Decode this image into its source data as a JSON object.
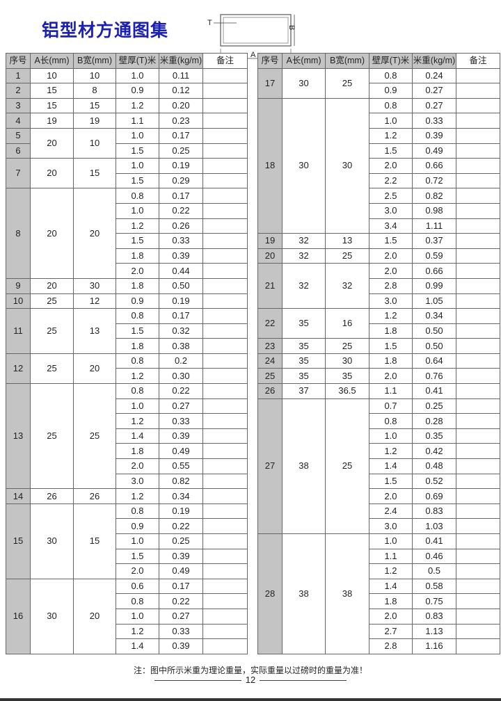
{
  "title": "铝型材方通图集",
  "diagram": {
    "label_t": "T",
    "label_a": "A",
    "label_b": "B"
  },
  "headers": [
    "序号",
    "A长(mm)",
    "B宽(mm)",
    "壁厚(T)米",
    "米重(kg/m)",
    "备注"
  ],
  "left_table": [
    {
      "seq": [
        "1"
      ],
      "a": "10",
      "b": "10",
      "rows": [
        [
          "1.0",
          "0.11"
        ]
      ]
    },
    {
      "seq": [
        "2"
      ],
      "a": "15",
      "b": "8",
      "rows": [
        [
          "0.9",
          "0.12"
        ]
      ]
    },
    {
      "seq": [
        "3"
      ],
      "a": "15",
      "b": "15",
      "rows": [
        [
          "1.2",
          "0.20"
        ]
      ]
    },
    {
      "seq": [
        "4"
      ],
      "a": "19",
      "b": "19",
      "rows": [
        [
          "1.1",
          "0.23"
        ]
      ]
    },
    {
      "seq": [
        "5",
        "6"
      ],
      "a": "20",
      "b": "10",
      "rows": [
        [
          "1.0",
          "0.17"
        ],
        [
          "1.5",
          "0.25"
        ]
      ]
    },
    {
      "seq": [
        "7"
      ],
      "a": "20",
      "b": "15",
      "rows": [
        [
          "1.0",
          "0.19"
        ],
        [
          "1.5",
          "0.29"
        ]
      ]
    },
    {
      "seq": [
        "8"
      ],
      "a": "20",
      "b": "20",
      "rows": [
        [
          "0.8",
          "0.17"
        ],
        [
          "1.0",
          "0.22"
        ],
        [
          "1.2",
          "0.26"
        ],
        [
          "1.5",
          "0.33"
        ],
        [
          "1.8",
          "0.39"
        ],
        [
          "2.0",
          "0.44"
        ]
      ]
    },
    {
      "seq": [
        "9"
      ],
      "a": "20",
      "b": "30",
      "rows": [
        [
          "1.8",
          "0.50"
        ]
      ]
    },
    {
      "seq": [
        "10"
      ],
      "a": "25",
      "b": "12",
      "rows": [
        [
          "0.9",
          "0.19"
        ]
      ]
    },
    {
      "seq": [
        "11"
      ],
      "a": "25",
      "b": "13",
      "rows": [
        [
          "0.8",
          "0.17"
        ],
        [
          "1.5",
          "0.32"
        ],
        [
          "1.8",
          "0.38"
        ]
      ]
    },
    {
      "seq": [
        "12"
      ],
      "a": "25",
      "b": "20",
      "rows": [
        [
          "0.8",
          "0.2"
        ],
        [
          "1.2",
          "0.30"
        ]
      ]
    },
    {
      "seq": [
        "13"
      ],
      "a": "25",
      "b": "25",
      "rows": [
        [
          "0.8",
          "0.22"
        ],
        [
          "1.0",
          "0.27"
        ],
        [
          "1.2",
          "0.33"
        ],
        [
          "1.4",
          "0.39"
        ],
        [
          "1.8",
          "0.49"
        ],
        [
          "2.0",
          "0.55"
        ],
        [
          "3.0",
          "0.82"
        ]
      ]
    },
    {
      "seq": [
        "14"
      ],
      "a": "26",
      "b": "26",
      "rows": [
        [
          "1.2",
          "0.34"
        ]
      ]
    },
    {
      "seq": [
        "15"
      ],
      "a": "30",
      "b": "15",
      "rows": [
        [
          "0.8",
          "0.19"
        ],
        [
          "0.9",
          "0.22"
        ],
        [
          "1.0",
          "0.25"
        ],
        [
          "1.5",
          "0.39"
        ],
        [
          "2.0",
          "0.49"
        ]
      ]
    },
    {
      "seq": [
        "16"
      ],
      "a": "30",
      "b": "20",
      "rows": [
        [
          "0.6",
          "0.17"
        ],
        [
          "0.8",
          "0.22"
        ],
        [
          "1.0",
          "0.27"
        ],
        [
          "1.2",
          "0.33"
        ],
        [
          "1.4",
          "0.39"
        ]
      ]
    }
  ],
  "right_table": [
    {
      "seq": [
        "17"
      ],
      "a": "30",
      "b": "25",
      "rows": [
        [
          "0.8",
          "0.24"
        ],
        [
          "0.9",
          "0.27"
        ]
      ]
    },
    {
      "seq": [
        "18"
      ],
      "a": "30",
      "b": "30",
      "rows": [
        [
          "0.8",
          "0.27"
        ],
        [
          "1.0",
          "0.33"
        ],
        [
          "1.2",
          "0.39"
        ],
        [
          "1.5",
          "0.49"
        ],
        [
          "2.0",
          "0.66"
        ],
        [
          "2.2",
          "0.72"
        ],
        [
          "2.5",
          "0.82"
        ],
        [
          "3.0",
          "0.98"
        ],
        [
          "3.4",
          "1.11"
        ]
      ]
    },
    {
      "seq": [
        "19"
      ],
      "a": "32",
      "b": "13",
      "rows": [
        [
          "1.5",
          "0.37"
        ]
      ]
    },
    {
      "seq": [
        "20"
      ],
      "a": "32",
      "b": "25",
      "rows": [
        [
          "2.0",
          "0.59"
        ]
      ]
    },
    {
      "seq": [
        "21"
      ],
      "a": "32",
      "b": "32",
      "rows": [
        [
          "2.0",
          "0.66"
        ],
        [
          "2.8",
          "0.99"
        ],
        [
          "3.0",
          "1.05"
        ]
      ]
    },
    {
      "seq": [
        "22"
      ],
      "a": "35",
      "b": "16",
      "rows": [
        [
          "1.2",
          "0.34"
        ],
        [
          "1.8",
          "0.50"
        ]
      ]
    },
    {
      "seq": [
        "23"
      ],
      "a": "35",
      "b": "25",
      "rows": [
        [
          "1.5",
          "0.50"
        ]
      ]
    },
    {
      "seq": [
        "24"
      ],
      "a": "35",
      "b": "30",
      "rows": [
        [
          "1.8",
          "0.64"
        ]
      ]
    },
    {
      "seq": [
        "25"
      ],
      "a": "35",
      "b": "35",
      "rows": [
        [
          "2.0",
          "0.76"
        ]
      ]
    },
    {
      "seq": [
        "26"
      ],
      "a": "37",
      "b": "36.5",
      "rows": [
        [
          "1.1",
          "0.41"
        ]
      ]
    },
    {
      "seq": [
        "27"
      ],
      "a": "38",
      "b": "25",
      "rows": [
        [
          "0.7",
          "0.25"
        ],
        [
          "0.8",
          "0.28"
        ],
        [
          "1.0",
          "0.35"
        ],
        [
          "1.2",
          "0.42"
        ],
        [
          "1.4",
          "0.48"
        ],
        [
          "1.5",
          "0.52"
        ],
        [
          "2.0",
          "0.69"
        ],
        [
          "2.4",
          "0.83"
        ],
        [
          "3.0",
          "1.03"
        ]
      ]
    },
    {
      "seq": [
        "28"
      ],
      "a": "38",
      "b": "38",
      "rows": [
        [
          "1.0",
          "0.41"
        ],
        [
          "1.1",
          "0.46"
        ],
        [
          "1.2",
          "0.5"
        ],
        [
          "1.4",
          "0.58"
        ],
        [
          "1.8",
          "0.75"
        ],
        [
          "2.0",
          "0.83"
        ],
        [
          "2.7",
          "1.13"
        ],
        [
          "2.8",
          "1.16"
        ]
      ]
    }
  ],
  "footnote": "注：图中所示米重为理论重量，实际重量以过磅时的重量为准！",
  "page_number": "12"
}
